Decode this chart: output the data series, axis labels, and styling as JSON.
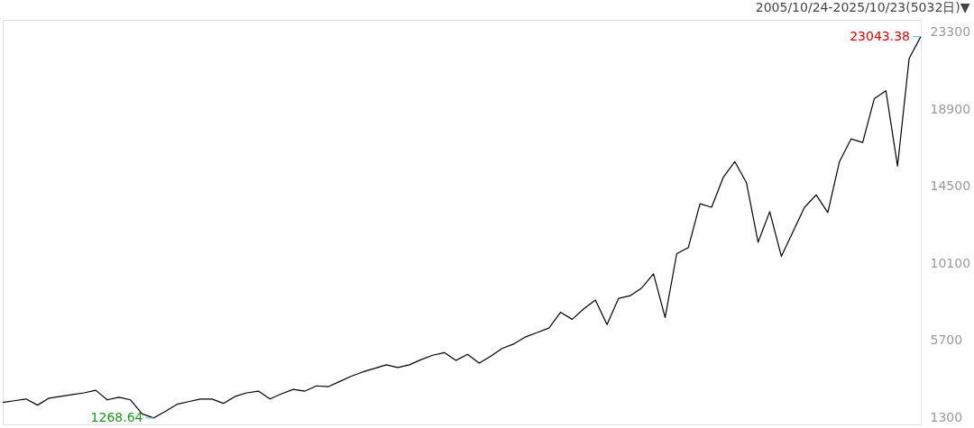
{
  "chart_data": {
    "type": "line",
    "title": "2005/10/24-2025/10/23(5032日)▼",
    "categories": [
      null,
      null,
      null,
      null,
      null,
      null,
      null,
      null,
      null,
      null,
      null,
      null,
      null,
      null,
      null,
      null,
      null,
      null,
      null,
      null,
      null,
      null,
      null,
      null,
      null,
      null,
      null,
      null,
      null,
      null,
      null,
      null,
      null,
      null,
      null,
      null,
      null,
      null,
      null,
      null,
      null,
      null,
      null,
      null,
      null,
      null,
      null,
      null,
      null,
      null,
      null,
      null,
      null,
      null,
      null,
      null,
      null,
      null,
      null,
      null,
      null,
      null,
      null,
      null,
      null,
      null,
      null,
      null,
      null,
      null,
      null,
      null,
      null,
      null,
      null,
      null,
      null,
      null,
      null,
      null
    ],
    "values": [
      2150,
      2250,
      2350,
      2000,
      2400,
      2500,
      2600,
      2700,
      2850,
      2300,
      2450,
      2300,
      1500,
      1268.64,
      1650,
      2050,
      2200,
      2350,
      2350,
      2100,
      2500,
      2700,
      2800,
      2350,
      2650,
      2900,
      2800,
      3100,
      3050,
      3350,
      3650,
      3900,
      4100,
      4300,
      4150,
      4300,
      4600,
      4850,
      5000,
      4550,
      4900,
      4400,
      4800,
      5250,
      5500,
      5900,
      6150,
      6400,
      7300,
      6900,
      7500,
      8000,
      6600,
      8100,
      8250,
      8700,
      9500,
      7000,
      10650,
      11000,
      13500,
      13300,
      15000,
      15900,
      14700,
      11300,
      13050,
      10500,
      11900,
      13300,
      14000,
      13000,
      15900,
      17200,
      17000,
      19500,
      19950,
      15650,
      21800,
      23043.38
    ],
    "color": "#000000",
    "ylim": [
      900,
      24000
    ],
    "yticks": [
      1300,
      5700,
      10100,
      14500,
      18900,
      23300
    ],
    "tick_labels": "y",
    "grid": false,
    "marker": "none",
    "line_style": "solid",
    "annotations": [
      "23043.38",
      "1268.64"
    ]
  }
}
